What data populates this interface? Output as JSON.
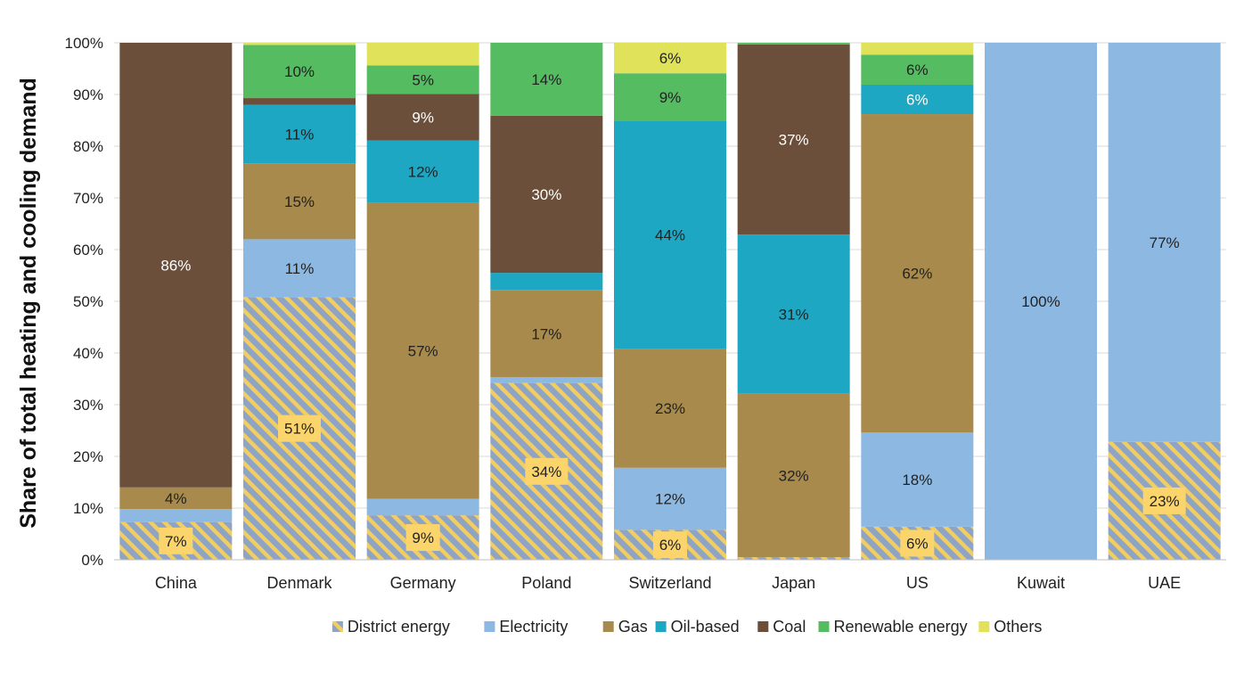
{
  "chart_data": {
    "type": "bar",
    "stacked": true,
    "title": "",
    "xlabel": "",
    "ylabel": "Share of total heating and cooling demand",
    "ylim": [
      0,
      100
    ],
    "yticks": [
      "0%",
      "10%",
      "20%",
      "30%",
      "40%",
      "50%",
      "60%",
      "70%",
      "80%",
      "90%",
      "100%"
    ],
    "grid": true,
    "legend_position": "bottom",
    "categories": [
      "China",
      "Denmark",
      "Germany",
      "Poland",
      "Switzerland",
      "Japan",
      "US",
      "Kuwait",
      "UAE"
    ],
    "series": [
      {
        "name": "District energy",
        "color": "#8ea4c4",
        "pattern": "hatch",
        "values": [
          7.3,
          50.8,
          8.6,
          34.2,
          5.8,
          0.5,
          6.4,
          0,
          22.8
        ]
      },
      {
        "name": "Electricity",
        "color": "#8db8e2",
        "values": [
          2.5,
          11.2,
          3.2,
          1.1,
          12.0,
          0,
          18.2,
          100,
          77.2
        ]
      },
      {
        "name": "Gas",
        "color": "#a88a4c",
        "values": [
          4.2,
          14.7,
          57.2,
          16.9,
          23.0,
          31.6,
          61.6,
          0,
          0
        ]
      },
      {
        "name": "Oil-based",
        "color": "#1ea7c3",
        "values": [
          0,
          11.3,
          12.1,
          3.3,
          44.1,
          30.8,
          5.7,
          0,
          0
        ]
      },
      {
        "name": "Coal",
        "color": "#6b4f3a",
        "values": [
          86.0,
          1.3,
          9.0,
          30.4,
          0,
          36.8,
          0,
          0,
          0
        ]
      },
      {
        "name": "Renewable energy",
        "color": "#55bc61",
        "values": [
          0,
          10.3,
          5.5,
          14.1,
          9.2,
          0.3,
          5.8,
          0,
          0
        ]
      },
      {
        "name": "Others",
        "color": "#e0e35a",
        "values": [
          0,
          0.4,
          4.4,
          0,
          5.9,
          0,
          2.3,
          0,
          0
        ]
      }
    ],
    "data_labels": [
      {
        "category": "China",
        "series": "District energy",
        "text": "7%",
        "style": "box"
      },
      {
        "category": "China",
        "series": "Gas",
        "text": "4%",
        "style": "dark"
      },
      {
        "category": "China",
        "series": "Coal",
        "text": "86%",
        "style": "light"
      },
      {
        "category": "Denmark",
        "series": "District energy",
        "text": "51%",
        "style": "box"
      },
      {
        "category": "Denmark",
        "series": "Electricity",
        "text": "11%",
        "style": "dark"
      },
      {
        "category": "Denmark",
        "series": "Gas",
        "text": "15%",
        "style": "dark"
      },
      {
        "category": "Denmark",
        "series": "Oil-based",
        "text": "11%",
        "style": "dark"
      },
      {
        "category": "Denmark",
        "series": "Renewable energy",
        "text": "10%",
        "style": "dark"
      },
      {
        "category": "Germany",
        "series": "District energy",
        "text": "9%",
        "style": "box"
      },
      {
        "category": "Germany",
        "series": "Gas",
        "text": "57%",
        "style": "dark"
      },
      {
        "category": "Germany",
        "series": "Oil-based",
        "text": "12%",
        "style": "dark"
      },
      {
        "category": "Germany",
        "series": "Coal",
        "text": "9%",
        "style": "light"
      },
      {
        "category": "Germany",
        "series": "Renewable energy",
        "text": "5%",
        "style": "dark"
      },
      {
        "category": "Poland",
        "series": "District energy",
        "text": "34%",
        "style": "box"
      },
      {
        "category": "Poland",
        "series": "Gas",
        "text": "17%",
        "style": "dark"
      },
      {
        "category": "Poland",
        "series": "Coal",
        "text": "30%",
        "style": "light"
      },
      {
        "category": "Poland",
        "series": "Renewable energy",
        "text": "14%",
        "style": "dark"
      },
      {
        "category": "Switzerland",
        "series": "District energy",
        "text": "6%",
        "style": "box"
      },
      {
        "category": "Switzerland",
        "series": "Electricity",
        "text": "12%",
        "style": "dark"
      },
      {
        "category": "Switzerland",
        "series": "Gas",
        "text": "23%",
        "style": "dark"
      },
      {
        "category": "Switzerland",
        "series": "Oil-based",
        "text": "44%",
        "style": "dark"
      },
      {
        "category": "Switzerland",
        "series": "Renewable energy",
        "text": "9%",
        "style": "dark"
      },
      {
        "category": "Switzerland",
        "series": "Others",
        "text": "6%",
        "style": "dark"
      },
      {
        "category": "Japan",
        "series": "Gas",
        "text": "32%",
        "style": "dark"
      },
      {
        "category": "Japan",
        "series": "Oil-based",
        "text": "31%",
        "style": "dark"
      },
      {
        "category": "Japan",
        "series": "Coal",
        "text": "37%",
        "style": "light"
      },
      {
        "category": "US",
        "series": "District energy",
        "text": "6%",
        "style": "box"
      },
      {
        "category": "US",
        "series": "Electricity",
        "text": "18%",
        "style": "dark"
      },
      {
        "category": "US",
        "series": "Gas",
        "text": "62%",
        "style": "dark"
      },
      {
        "category": "US",
        "series": "Oil-based",
        "text": "6%",
        "style": "light"
      },
      {
        "category": "US",
        "series": "Renewable energy",
        "text": "6%",
        "style": "dark"
      },
      {
        "category": "Kuwait",
        "series": "Electricity",
        "text": "100%",
        "style": "dark"
      },
      {
        "category": "UAE",
        "series": "District energy",
        "text": "23%",
        "style": "box"
      },
      {
        "category": "UAE",
        "series": "Electricity",
        "text": "77%",
        "style": "dark"
      }
    ]
  }
}
